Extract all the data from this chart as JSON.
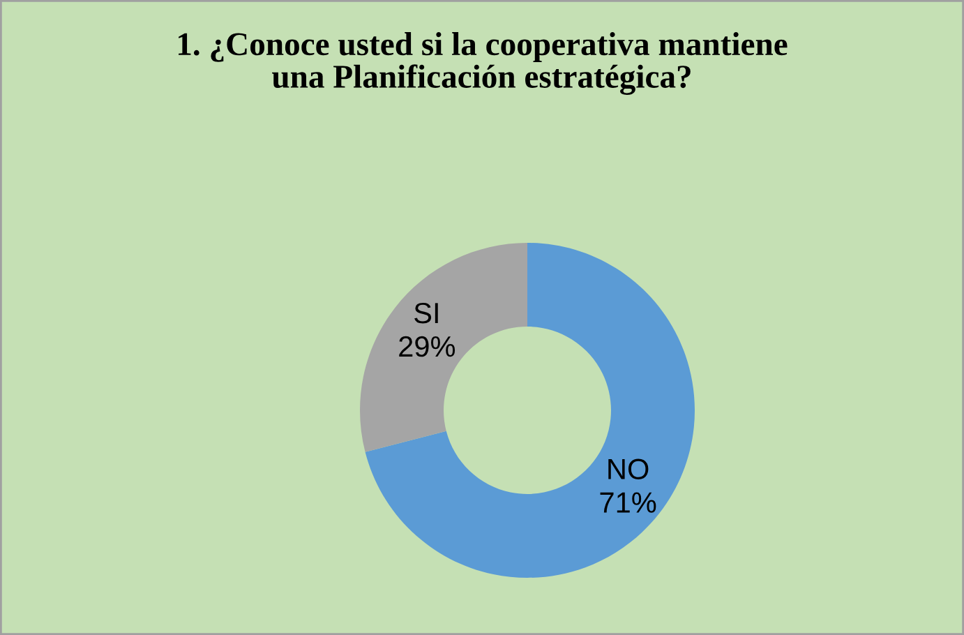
{
  "chart_data": {
    "type": "donut",
    "title": "1. ¿Conoce usted si la cooperativa mantiene\nuna Planificación estratégica?",
    "categories": [
      "NO",
      "SI"
    ],
    "values": [
      71,
      29
    ],
    "value_labels": [
      "71%",
      "29%"
    ],
    "colors": [
      "#5b9bd5",
      "#a5a5a5"
    ],
    "legend": false
  }
}
